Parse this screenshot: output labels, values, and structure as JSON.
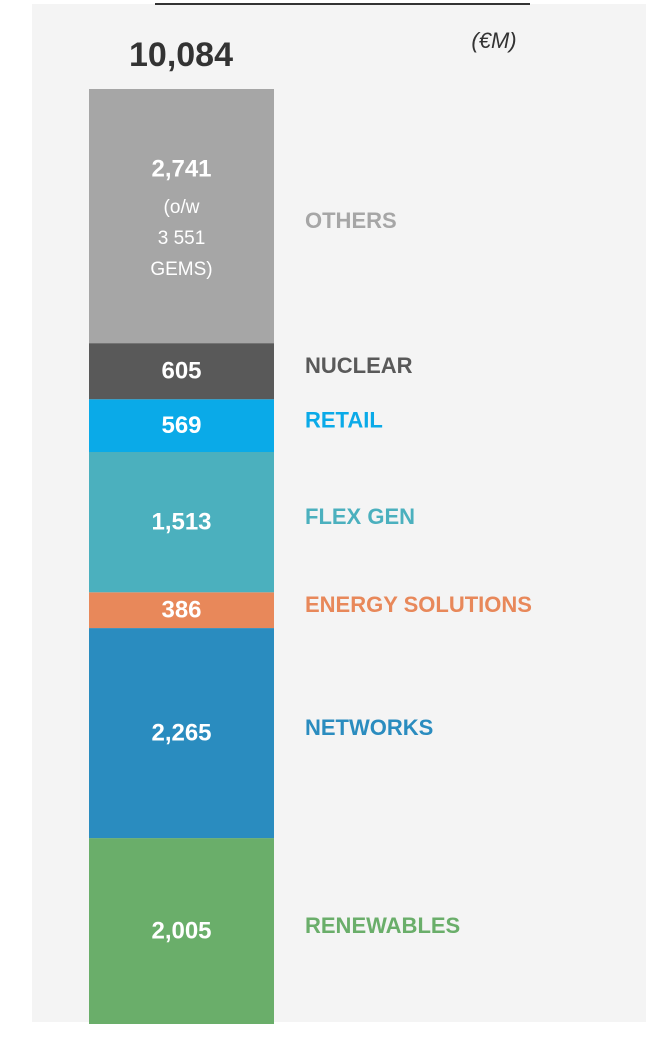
{
  "chart_data": {
    "type": "bar",
    "stacked": true,
    "unit": "(€M)",
    "total": 10084,
    "total_label": "10,084",
    "ylim": [
      0,
      10084
    ],
    "series": [
      {
        "name": "RENEWABLES",
        "color": "#6aae6a",
        "values": [
          2005
        ],
        "value_labels": [
          "2,005"
        ]
      },
      {
        "name": "NETWORKS",
        "color": "#2a8cbf",
        "values": [
          2265
        ],
        "value_labels": [
          "2,265"
        ]
      },
      {
        "name": "ENERGY SOLUTIONS",
        "color": "#e8885a",
        "values": [
          386
        ],
        "value_labels": [
          "386"
        ]
      },
      {
        "name": "FLEX GEN",
        "color": "#4bb0be",
        "values": [
          1513
        ],
        "value_labels": [
          "1,513"
        ]
      },
      {
        "name": "RETAIL",
        "color": "#0aaae8",
        "values": [
          569
        ],
        "value_labels": [
          "569"
        ]
      },
      {
        "name": "NUCLEAR",
        "color": "#595959",
        "values": [
          605
        ],
        "value_labels": [
          "605"
        ]
      },
      {
        "name": "OTHERS",
        "color": "#a6a6a6",
        "values": [
          2741
        ],
        "value_labels": [
          "2,741"
        ],
        "note": [
          "(o/w",
          "3 551",
          "GEMS)"
        ]
      }
    ]
  }
}
